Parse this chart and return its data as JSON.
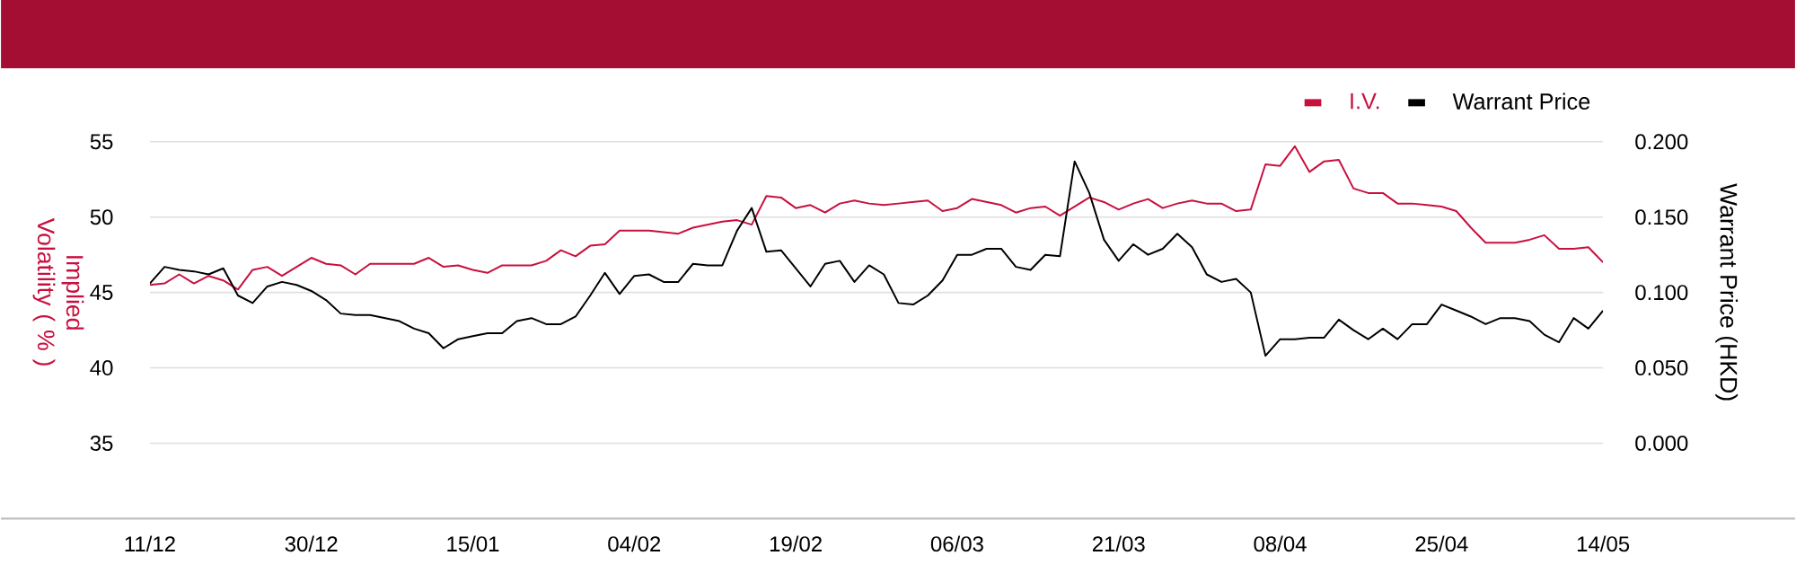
{
  "chart_data": {
    "type": "line",
    "categories": [
      "11/12",
      null,
      null,
      null,
      null,
      null,
      null,
      null,
      null,
      null,
      null,
      "30/12",
      null,
      null,
      null,
      null,
      null,
      null,
      null,
      null,
      null,
      null,
      "15/01",
      null,
      null,
      null,
      null,
      null,
      null,
      null,
      null,
      null,
      null,
      "04/02",
      null,
      null,
      null,
      null,
      null,
      null,
      null,
      null,
      null,
      null,
      "19/02",
      null,
      null,
      null,
      null,
      null,
      null,
      null,
      null,
      null,
      null,
      "06/03",
      null,
      null,
      null,
      null,
      null,
      null,
      null,
      null,
      null,
      null,
      "21/03",
      null,
      null,
      null,
      null,
      null,
      null,
      null,
      null,
      null,
      null,
      "08/04",
      null,
      null,
      null,
      null,
      null,
      null,
      null,
      null,
      null,
      null,
      "25/04",
      null,
      null,
      null,
      null,
      null,
      null,
      null,
      null,
      null,
      null,
      "14/05"
    ],
    "series": [
      {
        "name": "I.V.",
        "color": "#c8103e",
        "values": [
          45.5,
          45.6,
          46.2,
          45.6,
          46.1,
          45.8,
          45.2,
          46.5,
          46.7,
          46.1,
          46.7,
          47.3,
          46.9,
          46.8,
          46.2,
          46.9,
          46.9,
          46.9,
          46.9,
          47.3,
          46.7,
          46.8,
          46.5,
          46.3,
          46.8,
          46.8,
          46.8,
          47.1,
          47.8,
          47.4,
          48.1,
          48.2,
          49.1,
          49.1,
          49.1,
          49.0,
          48.9,
          49.3,
          49.5,
          49.7,
          49.8,
          49.5,
          51.4,
          51.3,
          50.6,
          50.8,
          50.3,
          50.9,
          51.1,
          50.9,
          50.8,
          50.9,
          51.0,
          51.1,
          50.4,
          50.6,
          51.2,
          51.0,
          50.8,
          50.3,
          50.6,
          50.7,
          50.1,
          50.7,
          51.3,
          51.0,
          50.5,
          50.9,
          51.2,
          50.6,
          50.9,
          51.1,
          50.9,
          50.9,
          50.4,
          50.5,
          53.5,
          53.4,
          54.7,
          53.0,
          53.7,
          53.8,
          51.9,
          51.6,
          51.6,
          50.9,
          50.9,
          50.8,
          50.7,
          50.4,
          49.3,
          48.3,
          48.3,
          48.3,
          48.5,
          48.8,
          47.9,
          47.9,
          48.0,
          47.0
        ]
      },
      {
        "name": "Warrant Price",
        "color": "#000000",
        "axis": "y2",
        "values": [
          0.106,
          0.117,
          0.115,
          0.114,
          0.112,
          0.116,
          0.098,
          0.093,
          0.104,
          0.107,
          0.105,
          0.101,
          0.095,
          0.086,
          0.085,
          0.085,
          0.083,
          0.081,
          0.076,
          0.073,
          0.063,
          0.069,
          0.071,
          0.073,
          0.073,
          0.081,
          0.083,
          0.079,
          0.079,
          0.084,
          0.098,
          0.113,
          0.099,
          0.111,
          0.112,
          0.107,
          0.107,
          0.119,
          0.118,
          0.118,
          0.141,
          0.156,
          0.127,
          0.128,
          0.116,
          0.104,
          0.119,
          0.121,
          0.107,
          0.118,
          0.112,
          0.093,
          0.092,
          0.098,
          0.108,
          0.125,
          0.125,
          0.129,
          0.129,
          0.117,
          0.115,
          0.125,
          0.124,
          0.187,
          0.166,
          0.135,
          0.121,
          0.132,
          0.125,
          0.129,
          0.139,
          0.13,
          0.112,
          0.107,
          0.109,
          0.1,
          0.058,
          0.069,
          0.069,
          0.07,
          0.07,
          0.082,
          0.075,
          0.069,
          0.076,
          0.069,
          0.079,
          0.079,
          0.092,
          0.088,
          0.084,
          0.079,
          0.083,
          0.083,
          0.081,
          0.072,
          0.067,
          0.083,
          0.076,
          0.088
        ]
      }
    ],
    "ylabel": "Implied Volatility ( % )",
    "y2label": "Warrant Price (HKD)",
    "ylim": [
      30,
      55
    ],
    "yticks": [
      35,
      40,
      45,
      50,
      55
    ],
    "y2lim": [
      -0.05,
      0.2
    ],
    "y2ticks": [
      {
        "value": 0,
        "label": "0.000"
      },
      {
        "value": 0.05,
        "label": "0.050"
      },
      {
        "value": 0.1,
        "label": "0.100"
      },
      {
        "value": 0.15,
        "label": "0.150"
      },
      {
        "value": 0.2,
        "label": "0.200"
      }
    ],
    "grid": "y",
    "legend": "top right",
    "marker": "none",
    "line_style": "solid"
  }
}
